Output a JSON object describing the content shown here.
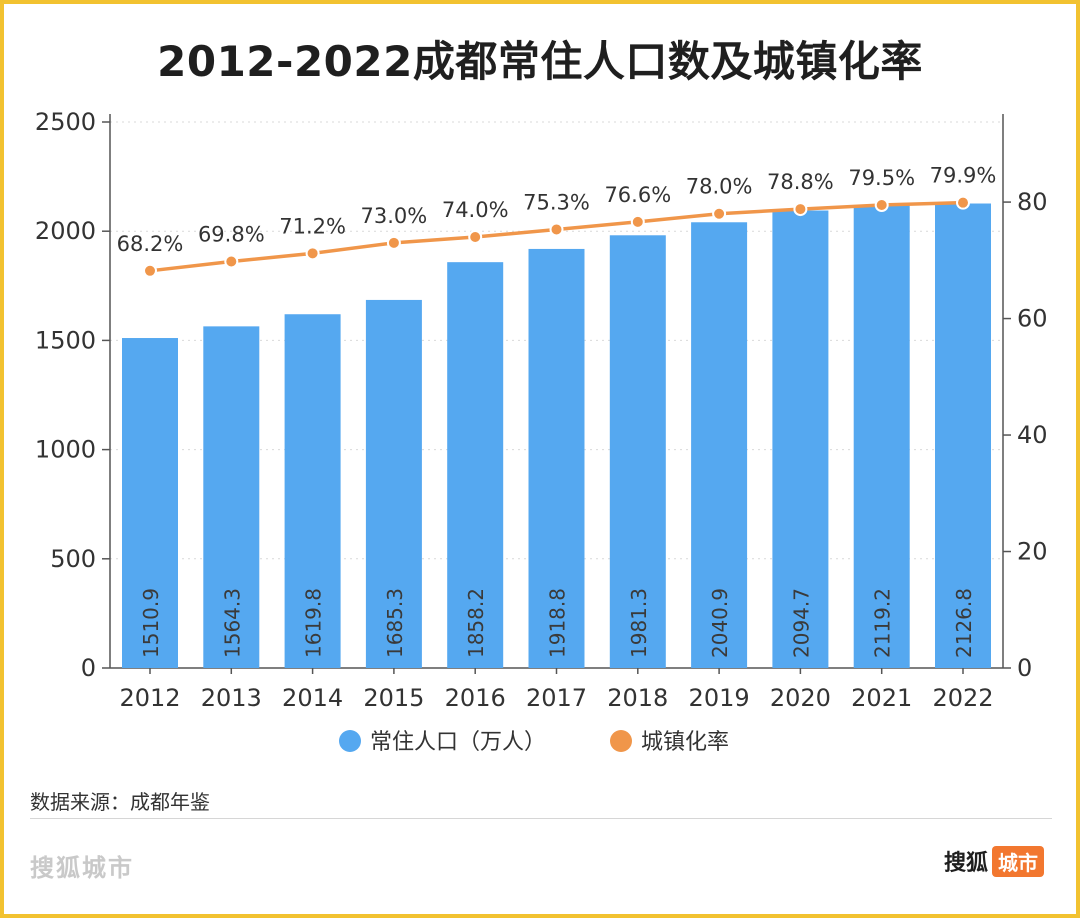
{
  "title": "2012-2022成都常住人口数及城镇化率",
  "source": "数据来源：成都年鉴",
  "brand_left": "搜狐城市",
  "brand_right": {
    "part1": "搜狐",
    "part2": "城市"
  },
  "colors": {
    "bar": "#55a8f0",
    "line": "#f0964a",
    "frame": "#f2c230",
    "brand_badge": "#f2772f"
  },
  "chart_data": {
    "type": "bar+line",
    "title": "2012-2022成都常住人口数及城镇化率",
    "categories": [
      "2012",
      "2013",
      "2014",
      "2015",
      "2016",
      "2017",
      "2018",
      "2019",
      "2020",
      "2021",
      "2022"
    ],
    "series": [
      {
        "name": "常住人口（万人）",
        "type": "bar",
        "axis": "left",
        "values": [
          1510.9,
          1564.3,
          1619.8,
          1685.3,
          1858.2,
          1918.8,
          1981.3,
          2040.9,
          2094.7,
          2119.2,
          2126.8
        ],
        "labels": [
          "1510.9",
          "1564.3",
          "1619.8",
          "1685.3",
          "1858.2",
          "1918.8",
          "1981.3",
          "2040.9",
          "2094.7",
          "2119.2",
          "2126.8"
        ]
      },
      {
        "name": "城镇化率",
        "type": "line",
        "axis": "right",
        "values": [
          68.2,
          69.8,
          71.2,
          73.0,
          74.0,
          75.3,
          76.6,
          78.0,
          78.8,
          79.5,
          79.9
        ],
        "labels": [
          "68.2%",
          "69.8%",
          "71.2%",
          "73.0%",
          "74.0%",
          "75.3%",
          "76.6%",
          "78.0%",
          "78.8%",
          "79.5%",
          "79.9%"
        ]
      }
    ],
    "y_left": {
      "min": 0,
      "max": 2500,
      "ticks": [
        0,
        500,
        1000,
        1500,
        2000,
        2500
      ]
    },
    "y_right": {
      "min": 0,
      "max": 93.75,
      "ticks": [
        0,
        20,
        40,
        60,
        80
      ]
    },
    "grid": "dotted horizontal",
    "legend_position": "bottom"
  }
}
